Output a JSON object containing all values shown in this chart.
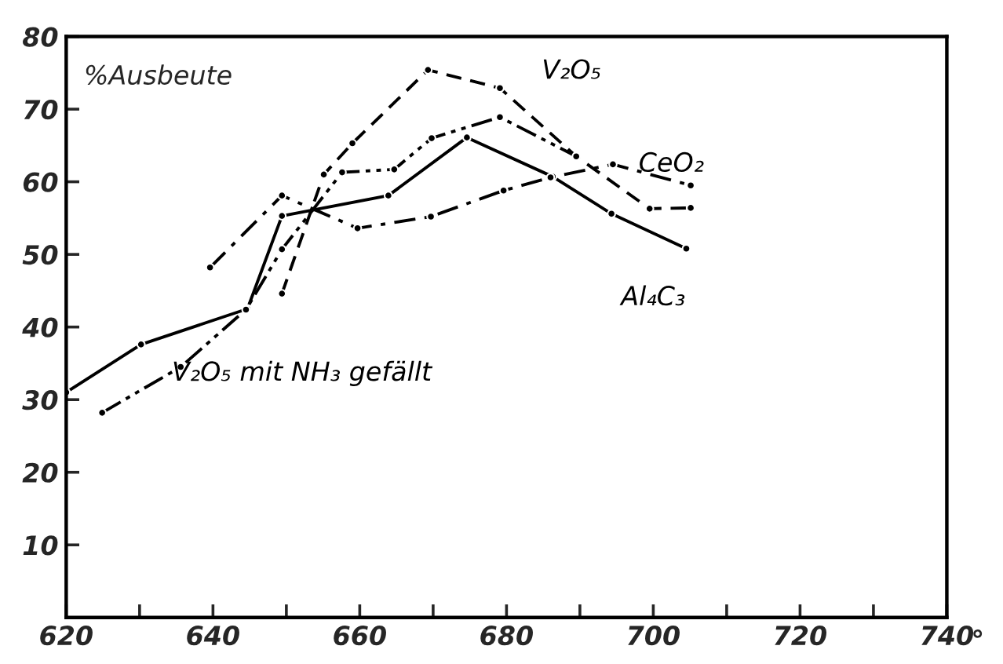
{
  "chart_data": {
    "type": "line",
    "ylabel": "%Ausbeute",
    "xlabel": "°",
    "xlim": [
      620,
      740
    ],
    "xticks": [
      620,
      {
        "value": 630,
        "label": null
      },
      640,
      {
        "value": 650,
        "label": null
      },
      660,
      {
        "value": 670,
        "label": null
      },
      680,
      {
        "value": 690,
        "label": null
      },
      700,
      {
        "value": 710,
        "label": null
      },
      720,
      {
        "value": 730,
        "label": null
      },
      740
    ],
    "ylim": [
      0,
      80
    ],
    "yticks": [
      10,
      20,
      30,
      40,
      50,
      60,
      70,
      80
    ],
    "grid": false,
    "legend": false,
    "marker": "circle",
    "series": [
      {
        "name": "Al₄C₃",
        "color": "#000000",
        "line_style": "solid",
        "x": [
          620,
          630.2,
          644.7,
          649.4,
          663.9,
          674.6,
          686.3,
          694.3,
          704.5
        ],
        "values": [
          31,
          37.6,
          42.5,
          55.3,
          58.1,
          66.1,
          60.7,
          55.6,
          50.8
        ]
      },
      {
        "name": "V₂O₅",
        "color": "#000000",
        "line_style": "dashed",
        "x": [
          649.4,
          655.1,
          659,
          669.3,
          679.1,
          689.5,
          699.5,
          705.1
        ],
        "values": [
          44.6,
          61,
          65.3,
          75.4,
          72.9,
          63.5,
          56.3,
          56.4
        ]
      },
      {
        "name": "CeO₂",
        "color": "#000000",
        "line_style": "dashdot",
        "x": [
          639.6,
          649.4,
          659.7,
          669.7,
          679.6,
          686,
          694.5,
          705.1
        ],
        "values": [
          48.2,
          58.1,
          53.6,
          55.2,
          58.8,
          60.6,
          62.4,
          59.5
        ]
      },
      {
        "name": "V₂O₅ mit NH₃ gefällt",
        "color": "#000000",
        "line_style": "dashdotdot",
        "x": [
          624.9,
          635.6,
          644.5,
          649.4,
          657.6,
          664.7,
          669.8,
          679.1,
          689.5
        ],
        "values": [
          28.2,
          34.5,
          42.4,
          50.7,
          61.3,
          61.7,
          66,
          68.9,
          63.5
        ]
      }
    ]
  }
}
